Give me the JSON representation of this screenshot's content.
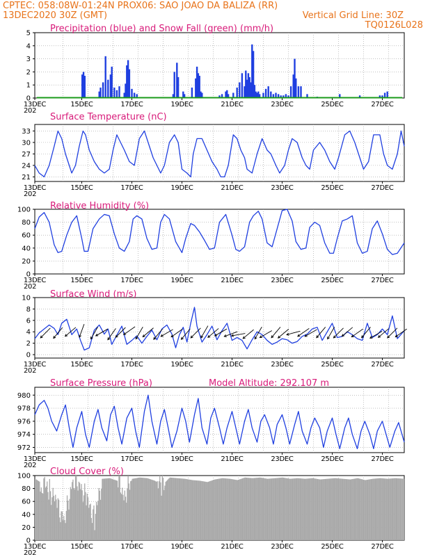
{
  "header": {
    "line1_left": "CPTEC:  058:08W-01:24N   PROX06: SAO JOAO DA BALIZA (RR)",
    "line2_left": "13DEC2020 30Z (GMT)",
    "line2_right": "Vertical Grid Line: 30Z",
    "line3_right": "TQ0126L028"
  },
  "x_axis": {
    "tick_labels": [
      "13DEC",
      "15DEC",
      "17DEC",
      "19DEC",
      "21DEC",
      "23DEC",
      "25DEC",
      "27DEC"
    ],
    "year_label": "202"
  },
  "colors": {
    "header": "#e8731a",
    "title": "#d81b7a",
    "line": "#1f3fe0",
    "snow": "#1a9a1a",
    "cloud": "#a9a9a9",
    "wind_arrow": "#000000"
  },
  "chart_data": [
    {
      "type": "bar",
      "title": "Precipitation (blue) and Snow Fall (green) (mm/h)",
      "ylim": [
        0,
        5
      ],
      "y_ticks": [
        "0",
        "1",
        "2",
        "3",
        "4",
        "5"
      ],
      "days": [
        13.125,
        27.875
      ],
      "series": [
        {
          "name": "Precipitation",
          "color": "#1f3fe0",
          "x": [
            15.02,
            15.07,
            15.12,
            15.7,
            15.75,
            15.85,
            15.95,
            16.05,
            16.15,
            16.2,
            16.3,
            16.4,
            16.5,
            16.7,
            16.75,
            16.8,
            16.85,
            16.9,
            17.0,
            17.1,
            17.2,
            18.65,
            18.7,
            18.8,
            18.85,
            19.05,
            19.1,
            19.4,
            19.55,
            19.6,
            19.65,
            19.7,
            19.75,
            19.8,
            20.5,
            20.6,
            20.75,
            20.8,
            20.85,
            21.05,
            21.2,
            21.3,
            21.4,
            21.5,
            21.55,
            21.6,
            21.65,
            21.7,
            21.75,
            21.8,
            21.85,
            21.9,
            21.95,
            22.0,
            22.05,
            22.1,
            22.25,
            22.35,
            22.45,
            22.55,
            22.65,
            22.75,
            22.85,
            22.95,
            23.05,
            23.15,
            23.25,
            23.35,
            23.45,
            23.5,
            23.55,
            23.65,
            23.75,
            24.0,
            24.4,
            25.3,
            26.1,
            26.9,
            27.0,
            27.1,
            27.2
          ],
          "values": [
            1.8,
            2.0,
            1.7,
            0.5,
            0.8,
            1.2,
            3.2,
            1.4,
            1.8,
            2.4,
            0.8,
            0.6,
            0.9,
            0.4,
            1.1,
            2.5,
            2.9,
            2.2,
            0.7,
            0.4,
            0.3,
            0.3,
            2.0,
            2.7,
            1.6,
            0.5,
            0.3,
            0.8,
            1.5,
            2.4,
            1.9,
            1.7,
            0.5,
            0.4,
            0.2,
            0.3,
            0.5,
            0.6,
            0.3,
            0.4,
            0.8,
            1.2,
            1.9,
            0.9,
            2.1,
            1.4,
            1.9,
            1.6,
            1.2,
            4.1,
            3.6,
            1.0,
            0.5,
            0.4,
            0.5,
            0.3,
            0.4,
            0.7,
            0.9,
            0.5,
            0.3,
            0.4,
            0.3,
            0.2,
            0.2,
            0.3,
            0.2,
            0.9,
            1.8,
            3.0,
            1.5,
            0.9,
            0.9,
            0.3,
            0.1,
            0.3,
            0.2,
            0.2,
            0.2,
            0.4,
            0.5
          ]
        },
        {
          "name": "Snow Fall",
          "color": "#1a9a1a",
          "x": [
            13.2,
            27.8
          ],
          "values": [
            0,
            0
          ]
        }
      ]
    },
    {
      "type": "line",
      "title": "Surface Temperature (nC)",
      "ylim": [
        19.8,
        34.7
      ],
      "y_ticks": [
        "21",
        "24",
        "27",
        "30",
        "33"
      ],
      "x": [
        13.125,
        13.3,
        13.5,
        13.7,
        13.9,
        14.05,
        14.2,
        14.35,
        14.5,
        14.6,
        14.75,
        14.9,
        15.05,
        15.15,
        15.3,
        15.5,
        15.7,
        15.9,
        16.1,
        16.25,
        16.4,
        16.55,
        16.7,
        16.9,
        17.1,
        17.3,
        17.5,
        17.7,
        17.85,
        18.0,
        18.15,
        18.3,
        18.5,
        18.7,
        18.85,
        19.0,
        19.2,
        19.35,
        19.45,
        19.6,
        19.8,
        20.0,
        20.2,
        20.4,
        20.55,
        20.7,
        20.85,
        21.05,
        21.2,
        21.35,
        21.5,
        21.6,
        21.8,
        22.0,
        22.2,
        22.4,
        22.55,
        22.75,
        22.9,
        23.1,
        23.25,
        23.4,
        23.6,
        23.8,
        23.95,
        24.1,
        24.25,
        24.5,
        24.7,
        24.9,
        25.1,
        25.25,
        25.5,
        25.7,
        25.9,
        26.1,
        26.25,
        26.45,
        26.65,
        26.9,
        27.05,
        27.2,
        27.4,
        27.6,
        27.75,
        27.875
      ],
      "values": [
        24,
        22,
        21,
        24,
        29,
        33,
        31,
        27,
        24,
        22,
        24,
        29,
        33,
        32,
        28,
        25,
        23,
        22,
        23,
        28,
        32,
        30,
        28,
        25,
        24,
        31,
        33,
        29,
        26,
        24,
        22,
        24,
        30,
        32,
        30,
        23,
        22,
        21,
        27,
        31,
        31,
        28,
        25,
        23,
        21,
        21,
        24,
        32,
        31,
        28,
        26,
        23,
        22,
        27,
        31,
        28,
        27,
        24,
        22,
        24,
        28,
        31,
        30,
        26,
        24,
        23,
        28,
        30,
        28,
        25,
        23,
        26,
        32,
        33,
        30,
        26,
        23,
        25,
        32,
        32,
        27,
        24,
        23,
        27,
        33,
        29
      ]
    },
    {
      "type": "line",
      "title": "Relative Humidity (%)",
      "ylim": [
        0,
        100
      ],
      "y_ticks": [
        "0",
        "20",
        "40",
        "60",
        "80",
        "100"
      ],
      "x": [
        13.125,
        13.3,
        13.5,
        13.7,
        13.9,
        14.05,
        14.2,
        14.4,
        14.6,
        14.8,
        15.0,
        15.1,
        15.25,
        15.45,
        15.7,
        15.9,
        16.1,
        16.3,
        16.5,
        16.7,
        16.9,
        17.05,
        17.2,
        17.4,
        17.6,
        17.8,
        18.0,
        18.15,
        18.3,
        18.5,
        18.75,
        19.0,
        19.15,
        19.35,
        19.5,
        19.7,
        19.9,
        20.1,
        20.3,
        20.5,
        20.75,
        21.0,
        21.15,
        21.3,
        21.5,
        21.7,
        21.85,
        22.05,
        22.2,
        22.4,
        22.6,
        22.8,
        23.0,
        23.2,
        23.4,
        23.55,
        23.75,
        23.95,
        24.1,
        24.3,
        24.5,
        24.7,
        24.9,
        25.05,
        25.2,
        25.4,
        25.6,
        25.8,
        26.0,
        26.2,
        26.4,
        26.6,
        26.8,
        27.0,
        27.2,
        27.4,
        27.6,
        27.875
      ],
      "values": [
        70,
        88,
        95,
        80,
        45,
        33,
        35,
        60,
        80,
        90,
        55,
        35,
        35,
        70,
        85,
        92,
        90,
        62,
        40,
        35,
        50,
        85,
        90,
        85,
        55,
        38,
        40,
        80,
        92,
        85,
        50,
        33,
        55,
        78,
        75,
        65,
        52,
        38,
        40,
        80,
        92,
        60,
        38,
        35,
        42,
        80,
        90,
        97,
        85,
        48,
        42,
        70,
        98,
        100,
        82,
        50,
        38,
        40,
        72,
        80,
        75,
        48,
        32,
        32,
        55,
        82,
        85,
        90,
        48,
        32,
        35,
        70,
        82,
        62,
        38,
        30,
        32,
        48
      ]
    },
    {
      "type": "line",
      "title": "Surface Wind (m/s)",
      "ylim": [
        -0.6,
        10
      ],
      "y_ticks": [
        "0",
        "2",
        "4",
        "6",
        "8",
        "10"
      ],
      "x": [
        13.125,
        13.3,
        13.5,
        13.7,
        13.9,
        14.05,
        14.2,
        14.4,
        14.6,
        14.8,
        14.95,
        15.1,
        15.3,
        15.5,
        15.7,
        15.9,
        16.05,
        16.2,
        16.4,
        16.6,
        16.8,
        17.0,
        17.2,
        17.4,
        17.6,
        17.8,
        18.0,
        18.2,
        18.4,
        18.6,
        18.75,
        18.9,
        19.05,
        19.2,
        19.35,
        19.5,
        19.6,
        19.8,
        20.0,
        20.2,
        20.4,
        20.6,
        20.8,
        21.0,
        21.2,
        21.4,
        21.6,
        21.8,
        22.0,
        22.2,
        22.4,
        22.6,
        22.8,
        23.0,
        23.2,
        23.4,
        23.6,
        23.8,
        24.0,
        24.2,
        24.4,
        24.6,
        24.8,
        25.0,
        25.2,
        25.4,
        25.6,
        25.8,
        26.0,
        26.2,
        26.4,
        26.6,
        26.8,
        27.0,
        27.2,
        27.4,
        27.6,
        27.875
      ],
      "values": [
        2.8,
        3.8,
        4.5,
        5.2,
        4.6,
        3.5,
        5.5,
        6.2,
        3.5,
        4.5,
        2.5,
        0.8,
        1.2,
        4.3,
        5.2,
        3.6,
        4.5,
        1.8,
        3.4,
        5.0,
        1.8,
        2.5,
        3.3,
        2.0,
        3.2,
        4.3,
        2.6,
        4.5,
        5.2,
        3.6,
        1.2,
        3.5,
        4.8,
        2.2,
        5.5,
        8.3,
        5.0,
        2.2,
        3.5,
        5.0,
        2.6,
        4.2,
        5.5,
        2.5,
        3.0,
        2.5,
        1.0,
        2.6,
        4.0,
        3.5,
        2.5,
        1.8,
        2.2,
        2.8,
        2.6,
        2.0,
        2.3,
        3.2,
        3.6,
        4.5,
        4.8,
        2.5,
        4.0,
        5.5,
        3.0,
        3.2,
        4.0,
        3.5,
        2.8,
        2.5,
        5.5,
        3.0,
        3.5,
        4.5,
        3.5,
        6.8,
        2.8,
        4.2
      ],
      "arrows": {
        "x": [
          13.55,
          14.05,
          14.55,
          15.0,
          15.5,
          15.8,
          16.2,
          16.55,
          16.9,
          17.3,
          17.65,
          18.05,
          18.4,
          18.8,
          19.15,
          19.55,
          19.9,
          20.25,
          20.55,
          20.95,
          21.25,
          21.65,
          22.05,
          22.35,
          22.75,
          23.05,
          23.45,
          23.85,
          24.15,
          24.55,
          24.95,
          25.25,
          25.6,
          26.0,
          26.35,
          26.75,
          27.05,
          27.4,
          27.75
        ],
        "level": [
          3.8,
          3.8,
          4.0,
          4.2,
          3.8,
          3.9,
          3.6,
          3.9,
          4.2,
          3.8,
          3.9,
          3.6,
          3.8,
          3.8,
          3.6,
          3.8,
          4.0,
          3.8,
          3.9,
          3.6,
          3.5,
          3.6,
          3.8,
          3.6,
          3.9,
          3.7,
          3.8,
          3.9,
          3.8,
          3.9,
          3.8,
          3.8,
          4.0,
          3.8,
          3.9,
          3.5,
          3.8,
          3.8,
          3.8
        ],
        "dir_deg": [
          135,
          130,
          140,
          110,
          120,
          150,
          125,
          135,
          145,
          120,
          140,
          130,
          150,
          145,
          130,
          135,
          120,
          140,
          150,
          160,
          170,
          140,
          120,
          150,
          130,
          140,
          165,
          145,
          150,
          130,
          120,
          135,
          140,
          145,
          130,
          150,
          140,
          135,
          145
        ]
      }
    },
    {
      "type": "line",
      "title": "Surface Pressure (hPa)",
      "subtitle": "Model Altitude: 292.107  m",
      "ylim": [
        971.2,
        981.2
      ],
      "y_ticks": [
        "972",
        "974",
        "976",
        "978",
        "980"
      ],
      "x": [
        13.125,
        13.3,
        13.5,
        13.65,
        13.8,
        14.0,
        14.2,
        14.35,
        14.5,
        14.65,
        14.8,
        15.0,
        15.15,
        15.3,
        15.5,
        15.65,
        15.8,
        16.0,
        16.15,
        16.3,
        16.45,
        16.6,
        16.8,
        17.0,
        17.15,
        17.3,
        17.5,
        17.65,
        17.8,
        18.0,
        18.15,
        18.3,
        18.45,
        18.6,
        18.8,
        19.0,
        19.15,
        19.3,
        19.5,
        19.65,
        19.8,
        20.0,
        20.15,
        20.3,
        20.5,
        20.65,
        20.8,
        21.0,
        21.15,
        21.3,
        21.5,
        21.65,
        21.8,
        22.0,
        22.15,
        22.3,
        22.5,
        22.65,
        22.8,
        23.0,
        23.15,
        23.3,
        23.5,
        23.65,
        23.8,
        24.0,
        24.15,
        24.3,
        24.5,
        24.65,
        24.8,
        25.0,
        25.15,
        25.3,
        25.5,
        25.65,
        25.8,
        26.0,
        26.15,
        26.3,
        26.5,
        26.65,
        26.8,
        27.0,
        27.15,
        27.3,
        27.5,
        27.65,
        27.875
      ],
      "values": [
        977,
        978.5,
        979.2,
        978,
        976,
        974.5,
        977,
        978.5,
        975,
        972,
        975,
        977.5,
        974,
        972,
        976,
        977.8,
        975,
        973,
        977,
        978.3,
        975,
        972.5,
        976.5,
        978,
        974.5,
        972,
        977.5,
        980,
        976,
        972.5,
        976,
        977.8,
        975,
        972,
        974.5,
        978,
        976,
        972.8,
        977,
        979.5,
        975,
        972.5,
        976.5,
        978,
        975,
        972.5,
        975,
        977.5,
        975,
        972.5,
        976,
        977.8,
        975,
        972.8,
        976,
        977,
        975,
        972.5,
        975.5,
        977,
        975,
        972.5,
        975.5,
        977.5,
        974.5,
        972.5,
        975,
        976.5,
        975,
        972,
        974.5,
        976.5,
        974,
        971.8,
        975,
        976.5,
        974,
        971.8,
        974.5,
        976,
        974,
        971.8,
        974.5,
        976,
        974,
        972,
        974.5,
        975.8,
        972.8
      ]
    },
    {
      "type": "area",
      "title": "Cloud Cover (%)",
      "ylim": [
        0,
        100
      ],
      "y_ticks": [
        "0",
        "20",
        "40",
        "60",
        "80",
        "100"
      ],
      "x": [
        13.125,
        13.4,
        13.7,
        14.0,
        14.3,
        14.6,
        14.9,
        15.2,
        15.5,
        15.8,
        16.1,
        16.4,
        16.7,
        17.0,
        17.3,
        17.6,
        17.9,
        18.2,
        18.5,
        18.8,
        19.1,
        19.4,
        19.7,
        20.0,
        20.3,
        20.6,
        20.9,
        21.2,
        21.5,
        21.8,
        22.1,
        22.4,
        22.7,
        23.0,
        23.3,
        23.6,
        23.9,
        24.2,
        24.5,
        24.8,
        25.1,
        25.4,
        25.7,
        26.0,
        26.3,
        26.6,
        26.9,
        27.2,
        27.5,
        27.875
      ],
      "values": [
        95,
        88,
        80,
        55,
        30,
        90,
        88,
        60,
        35,
        95,
        96,
        92,
        70,
        95,
        97,
        96,
        92,
        85,
        97,
        96,
        95,
        93,
        92,
        90,
        94,
        96,
        95,
        93,
        97,
        96,
        97,
        95,
        96,
        97,
        95,
        96,
        95,
        96,
        94,
        95,
        96,
        95,
        94,
        96,
        93,
        95,
        96,
        95,
        96,
        95
      ]
    }
  ]
}
